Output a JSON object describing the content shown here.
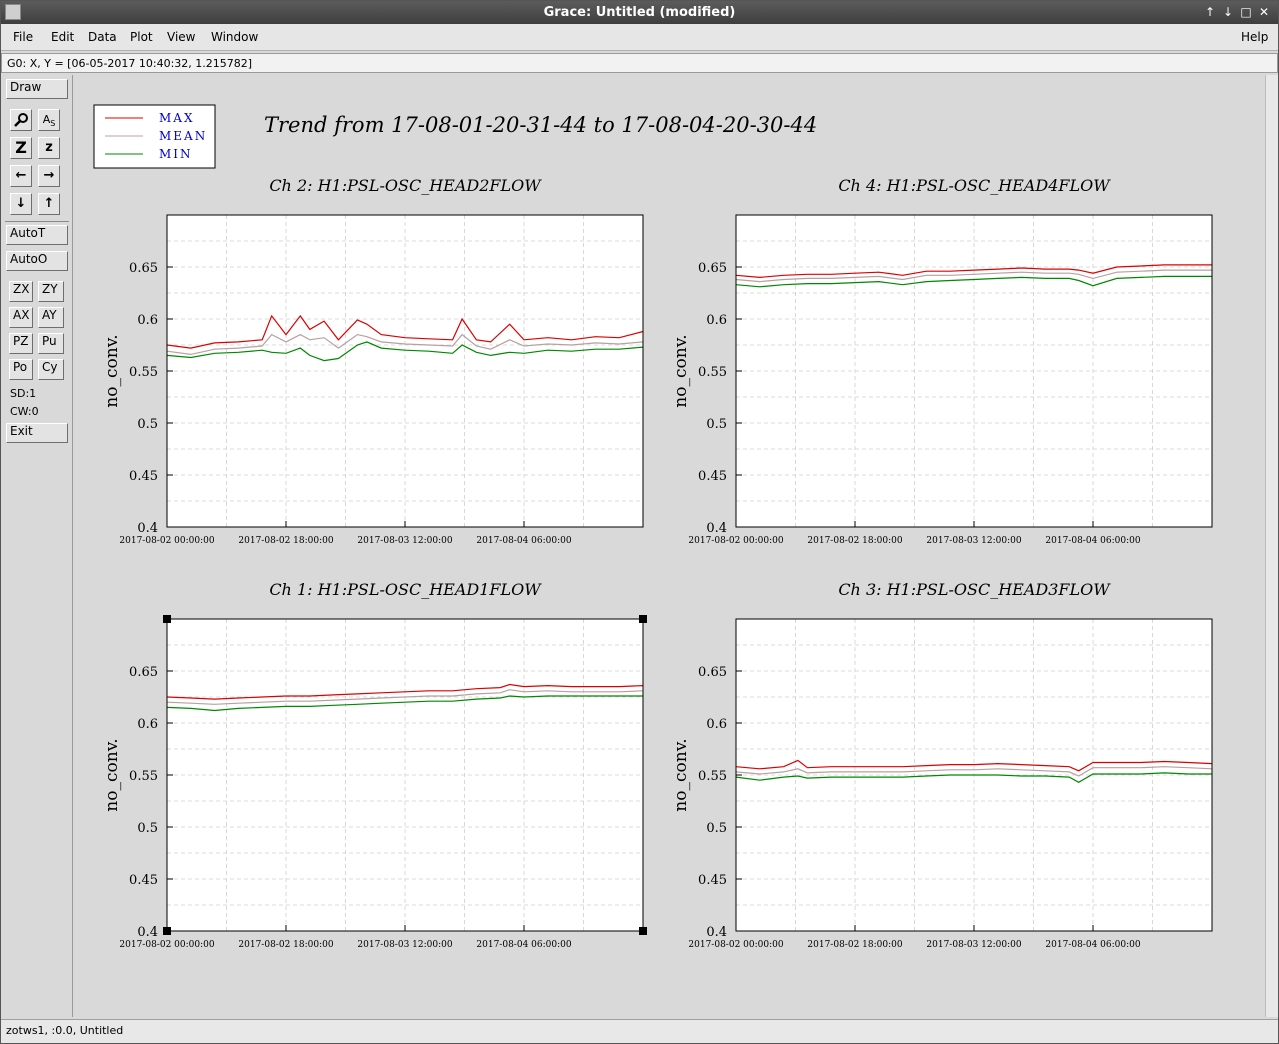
{
  "window": {
    "title": "Grace: Untitled (modified)",
    "controls": [
      "↑",
      "↓",
      "□",
      "✕"
    ]
  },
  "menubar": {
    "file": "File",
    "edit": "Edit",
    "data": "Data",
    "plot": "Plot",
    "view": "View",
    "window": "Window",
    "help": "Help"
  },
  "locator": "G0: X, Y = [06-05-2017 10:40:32, 1.215782]",
  "toolbar": {
    "draw": "Draw",
    "autot": "AutoT",
    "autoo": "AutoO",
    "zx": "ZX",
    "zy": "ZY",
    "ax": "AX",
    "ay": "AY",
    "pz": "PZ",
    "pu": "Pu",
    "po": "Po",
    "cy": "Cy",
    "sd": "SD:1",
    "cw": "CW:0",
    "exit": "Exit",
    "icons": {
      "zoom": "magnifier-icon",
      "text": "text-icon",
      "zoom_x": "Z",
      "zoom_y": "z",
      "left": "←",
      "right": "→",
      "down": "↓",
      "up": "↑"
    }
  },
  "status": "zotws1, :0.0, Untitled",
  "legend": {
    "max": "MAX",
    "mean": "MEAN",
    "min": "MIN"
  },
  "colors": {
    "max": "#dd0000",
    "mean": "#b8a0a0",
    "min": "#008800",
    "legend_text": "#0000cc"
  },
  "main_title": "Trend from 17-08-01-20-31-44 to 17-08-04-20-30-44",
  "chart_data": [
    {
      "type": "line",
      "title": "Ch 2: H1:PSL-OSC_HEAD2FLOW",
      "ylabel": "no_conv.",
      "ylim": [
        0.4,
        0.7
      ],
      "yticks": [
        0.4,
        0.45,
        0.5,
        0.55,
        0.6,
        0.65
      ],
      "xticks": [
        "2017-08-02 00:00:00",
        "2017-08-02 18:00:00",
        "2017-08-03 12:00:00",
        "2017-08-04 06:00:00"
      ],
      "x": [
        0,
        0.05,
        0.1,
        0.15,
        0.2,
        0.22,
        0.25,
        0.28,
        0.3,
        0.33,
        0.36,
        0.4,
        0.42,
        0.45,
        0.5,
        0.55,
        0.6,
        0.62,
        0.65,
        0.68,
        0.72,
        0.75,
        0.8,
        0.85,
        0.9,
        0.95,
        1.0
      ],
      "series": [
        {
          "name": "MAX",
          "values": [
            0.575,
            0.572,
            0.577,
            0.578,
            0.58,
            0.603,
            0.585,
            0.603,
            0.59,
            0.598,
            0.58,
            0.599,
            0.595,
            0.585,
            0.582,
            0.581,
            0.58,
            0.6,
            0.58,
            0.578,
            0.595,
            0.58,
            0.582,
            0.58,
            0.583,
            0.582,
            0.588
          ]
        },
        {
          "name": "MEAN",
          "values": [
            0.569,
            0.566,
            0.571,
            0.572,
            0.574,
            0.585,
            0.578,
            0.585,
            0.58,
            0.582,
            0.572,
            0.585,
            0.583,
            0.578,
            0.576,
            0.575,
            0.574,
            0.585,
            0.574,
            0.571,
            0.58,
            0.574,
            0.576,
            0.575,
            0.577,
            0.576,
            0.578
          ]
        },
        {
          "name": "MIN",
          "values": [
            0.565,
            0.563,
            0.567,
            0.568,
            0.57,
            0.568,
            0.567,
            0.572,
            0.565,
            0.56,
            0.562,
            0.575,
            0.578,
            0.572,
            0.57,
            0.569,
            0.567,
            0.575,
            0.568,
            0.565,
            0.568,
            0.567,
            0.57,
            0.569,
            0.571,
            0.571,
            0.573
          ]
        }
      ]
    },
    {
      "type": "line",
      "title": "Ch 4: H1:PSL-OSC_HEAD4FLOW",
      "ylabel": "no_conv.",
      "ylim": [
        0.4,
        0.7
      ],
      "yticks": [
        0.4,
        0.45,
        0.5,
        0.55,
        0.6,
        0.65
      ],
      "xticks": [
        "2017-08-02 00:00:00",
        "2017-08-02 18:00:00",
        "2017-08-03 12:00:00",
        "2017-08-04 06:00:00"
      ],
      "x": [
        0,
        0.05,
        0.1,
        0.15,
        0.2,
        0.25,
        0.3,
        0.35,
        0.4,
        0.45,
        0.5,
        0.55,
        0.6,
        0.65,
        0.7,
        0.72,
        0.75,
        0.8,
        0.85,
        0.9,
        0.95,
        1.0
      ],
      "series": [
        {
          "name": "MAX",
          "values": [
            0.642,
            0.64,
            0.642,
            0.643,
            0.643,
            0.644,
            0.645,
            0.642,
            0.646,
            0.646,
            0.647,
            0.648,
            0.649,
            0.648,
            0.648,
            0.647,
            0.644,
            0.65,
            0.651,
            0.652,
            0.652,
            0.652
          ]
        },
        {
          "name": "MEAN",
          "values": [
            0.638,
            0.636,
            0.638,
            0.639,
            0.639,
            0.64,
            0.641,
            0.638,
            0.642,
            0.642,
            0.643,
            0.644,
            0.645,
            0.644,
            0.644,
            0.643,
            0.639,
            0.645,
            0.646,
            0.647,
            0.647,
            0.647
          ]
        },
        {
          "name": "MIN",
          "values": [
            0.633,
            0.631,
            0.633,
            0.634,
            0.634,
            0.635,
            0.636,
            0.633,
            0.636,
            0.637,
            0.638,
            0.639,
            0.64,
            0.639,
            0.639,
            0.637,
            0.632,
            0.639,
            0.64,
            0.641,
            0.641,
            0.641
          ]
        }
      ]
    },
    {
      "type": "line",
      "title": "Ch 1: H1:PSL-OSC_HEAD1FLOW",
      "ylabel": "no_conv.",
      "ylim": [
        0.4,
        0.7
      ],
      "yticks": [
        0.4,
        0.45,
        0.5,
        0.55,
        0.6,
        0.65
      ],
      "xticks": [
        "2017-08-02 00:00:00",
        "2017-08-02 18:00:00",
        "2017-08-03 12:00:00",
        "2017-08-04 06:00:00"
      ],
      "x": [
        0,
        0.05,
        0.1,
        0.15,
        0.2,
        0.25,
        0.3,
        0.35,
        0.4,
        0.45,
        0.5,
        0.55,
        0.6,
        0.65,
        0.7,
        0.72,
        0.75,
        0.8,
        0.85,
        0.9,
        0.95,
        1.0
      ],
      "series": [
        {
          "name": "MAX",
          "values": [
            0.625,
            0.624,
            0.623,
            0.624,
            0.625,
            0.626,
            0.626,
            0.627,
            0.628,
            0.629,
            0.63,
            0.631,
            0.631,
            0.633,
            0.634,
            0.637,
            0.635,
            0.636,
            0.635,
            0.635,
            0.635,
            0.636
          ]
        },
        {
          "name": "MEAN",
          "values": [
            0.62,
            0.619,
            0.618,
            0.619,
            0.62,
            0.621,
            0.621,
            0.622,
            0.623,
            0.624,
            0.625,
            0.626,
            0.626,
            0.628,
            0.629,
            0.632,
            0.63,
            0.631,
            0.63,
            0.63,
            0.63,
            0.631
          ]
        },
        {
          "name": "MIN",
          "values": [
            0.615,
            0.614,
            0.612,
            0.614,
            0.615,
            0.616,
            0.616,
            0.617,
            0.618,
            0.619,
            0.62,
            0.621,
            0.621,
            0.623,
            0.624,
            0.626,
            0.625,
            0.626,
            0.626,
            0.626,
            0.626,
            0.626
          ]
        }
      ]
    },
    {
      "type": "line",
      "title": "Ch 3: H1:PSL-OSC_HEAD3FLOW",
      "ylabel": "no_conv.",
      "ylim": [
        0.4,
        0.7
      ],
      "yticks": [
        0.4,
        0.45,
        0.5,
        0.55,
        0.6,
        0.65
      ],
      "xticks": [
        "2017-08-02 00:00:00",
        "2017-08-02 18:00:00",
        "2017-08-03 12:00:00",
        "2017-08-04 06:00:00"
      ],
      "x": [
        0,
        0.05,
        0.1,
        0.13,
        0.15,
        0.2,
        0.25,
        0.3,
        0.35,
        0.4,
        0.45,
        0.5,
        0.55,
        0.6,
        0.65,
        0.7,
        0.72,
        0.75,
        0.8,
        0.85,
        0.9,
        0.95,
        1.0
      ],
      "series": [
        {
          "name": "MAX",
          "values": [
            0.558,
            0.556,
            0.558,
            0.564,
            0.557,
            0.558,
            0.558,
            0.558,
            0.558,
            0.559,
            0.56,
            0.56,
            0.561,
            0.56,
            0.559,
            0.558,
            0.554,
            0.562,
            0.562,
            0.562,
            0.563,
            0.562,
            0.561
          ]
        },
        {
          "name": "MEAN",
          "values": [
            0.553,
            0.551,
            0.553,
            0.556,
            0.552,
            0.553,
            0.553,
            0.553,
            0.553,
            0.554,
            0.555,
            0.555,
            0.556,
            0.555,
            0.554,
            0.553,
            0.549,
            0.557,
            0.557,
            0.557,
            0.558,
            0.557,
            0.556
          ]
        },
        {
          "name": "MIN",
          "values": [
            0.548,
            0.545,
            0.548,
            0.549,
            0.547,
            0.548,
            0.548,
            0.548,
            0.548,
            0.549,
            0.55,
            0.55,
            0.55,
            0.549,
            0.549,
            0.548,
            0.543,
            0.551,
            0.551,
            0.551,
            0.552,
            0.551,
            0.551
          ]
        }
      ]
    }
  ]
}
